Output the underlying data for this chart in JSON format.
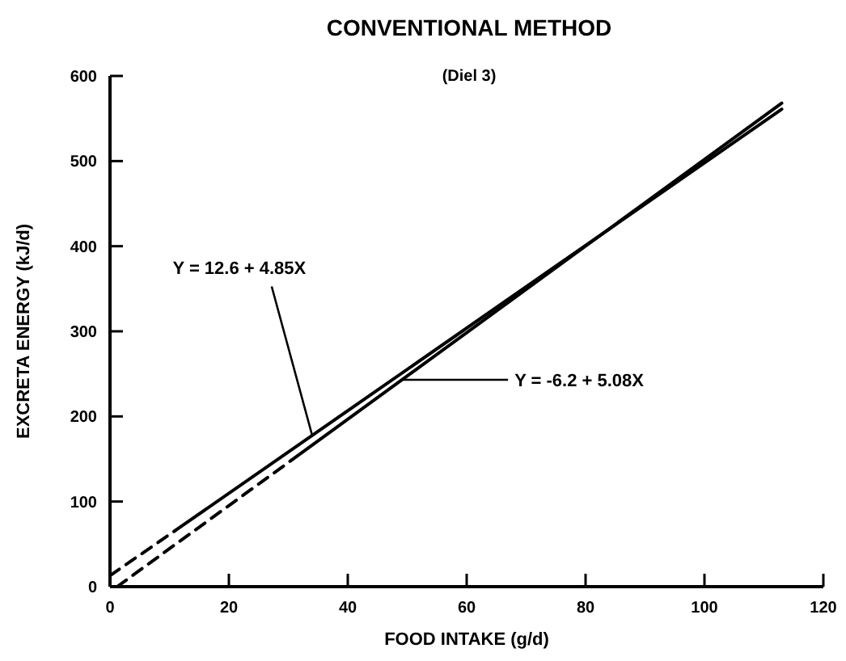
{
  "chart_data": {
    "type": "line",
    "title": "CONVENTIONAL METHOD",
    "subtitle": "(Diel 3)",
    "xlabel": "FOOD INTAKE (g/d)",
    "ylabel": "EXCRETA ENERGY (kJ/d)",
    "xlim": [
      0,
      120
    ],
    "xticks": [
      0,
      20,
      40,
      60,
      80,
      100,
      120
    ],
    "ylim": [
      0,
      600
    ],
    "yticks": [
      0,
      100,
      200,
      300,
      400,
      500,
      600
    ],
    "series": [
      {
        "color": "#000000",
        "line_style": "dashed",
        "x": [
          0,
          11
        ],
        "values": [
          13,
          66
        ]
      },
      {
        "color": "#000000",
        "line_style": "solid",
        "x": [
          11,
          113
        ],
        "values": [
          66,
          561
        ]
      },
      {
        "color": "#000000",
        "line_style": "dashed",
        "x": [
          1.2,
          32
        ],
        "values": [
          0,
          156
        ]
      },
      {
        "color": "#000000",
        "line_style": "solid",
        "x": [
          32,
          113
        ],
        "values": [
          156,
          568
        ]
      }
    ],
    "annotations": [
      {
        "text": "Y = 12.6 + 4.85X",
        "x": 34,
        "y": 178
      },
      {
        "text": "Y = -6.2 + 5.08X",
        "x": 49,
        "y": 243
      }
    ]
  }
}
